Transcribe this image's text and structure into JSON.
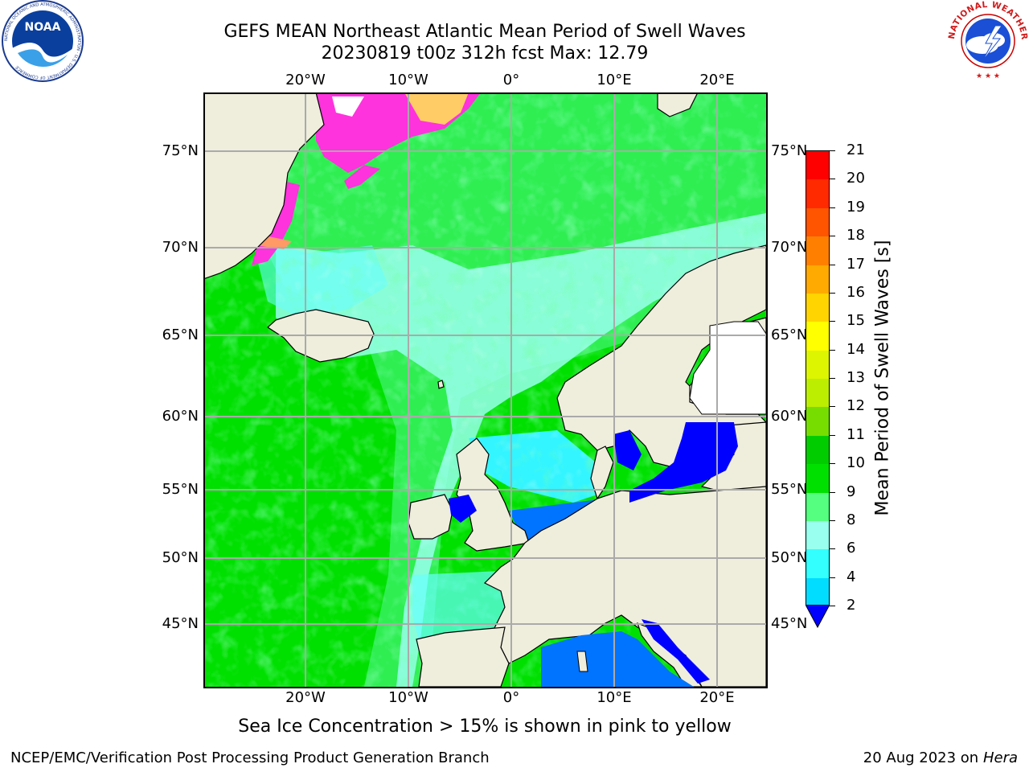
{
  "header": {
    "title_line1": "GEFS MEAN Northeast Atlantic Mean Period of Swell Waves",
    "title_line2": "20230819 t00z 312h fcst   Max: 12.79"
  },
  "logos": {
    "noaa": "NOAA",
    "noaa_ring": "NATIONAL OCEANIC AND ATMOSPHERIC ADMINISTRATION · U.S. DEPARTMENT OF COMMERCE",
    "nws_ring": "NATIONAL WEATHER SERVICE"
  },
  "map": {
    "lon_labels": [
      "20°W",
      "10°W",
      "0°",
      "10°E",
      "20°E"
    ],
    "lat_labels": [
      "75°N",
      "70°N",
      "65°N",
      "60°N",
      "55°N",
      "50°N",
      "45°N"
    ],
    "ocean_colors": {
      "green_bright": "#00e000",
      "green_mid": "#33f05a",
      "green_light": "#55ff80",
      "cyan_light": "#99ffee",
      "cyan": "#33f5ff",
      "blue": "#0074ff",
      "dark_blue": "#0000ff",
      "land": "#efeddc",
      "ice_pink": "#ff33dd",
      "ice_yellow": "#ffdd55"
    }
  },
  "colorbar": {
    "title": "Mean Period of Swell Waves [s]",
    "labels": [
      "21",
      "20",
      "19",
      "18",
      "17",
      "16",
      "15",
      "14",
      "13",
      "12",
      "11",
      "10",
      "9",
      "8",
      "6",
      "4",
      "2"
    ],
    "colors": [
      "#ff0000",
      "#ff2a00",
      "#ff5500",
      "#ff8000",
      "#ffaa00",
      "#ffd400",
      "#ffff00",
      "#ddf500",
      "#bbee00",
      "#77dd00",
      "#00cc00",
      "#00e000",
      "#55ff80",
      "#99ffee",
      "#33ffff",
      "#00ddff",
      "#0077ff"
    ],
    "under_color": "#0000ff"
  },
  "notes": {
    "sea_ice": "Sea Ice Concentration > 15% is shown in pink to yellow"
  },
  "footer": {
    "left": "NCEP/EMC/Verification Post Processing Product Generation Branch",
    "right_date": "20 Aug 2023 on",
    "right_host": "Hera"
  }
}
